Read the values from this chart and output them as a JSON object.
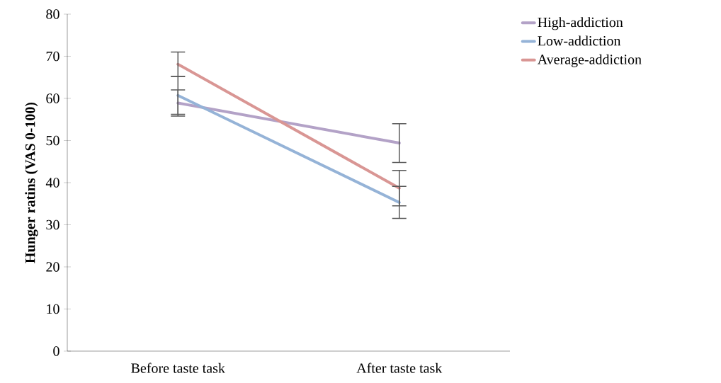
{
  "chart_data": {
    "type": "line",
    "ylabel": "**Hunger ratins (VAS 0-100)**",
    "categories": [
      "Before taste task",
      "After taste task"
    ],
    "series": [
      {
        "name": "High-addiction",
        "color": "#b3a2c7",
        "values": [
          58.9,
          49.4
        ],
        "errors": [
          3.1,
          4.6
        ]
      },
      {
        "name": "Low-addiction",
        "color": "#95b3d7",
        "values": [
          60.7,
          35.3
        ],
        "errors": [
          4.5,
          3.8
        ]
      },
      {
        "name": "Average-addiction",
        "color": "#d99694",
        "values": [
          68.1,
          38.7
        ],
        "errors": [
          2.9,
          4.2
        ]
      }
    ],
    "ylim": [
      0,
      80
    ],
    "yticks": [
      0,
      10,
      20,
      30,
      40,
      50,
      60,
      70,
      80
    ],
    "legend": "top right",
    "marker": "none",
    "line_style": "solid"
  }
}
